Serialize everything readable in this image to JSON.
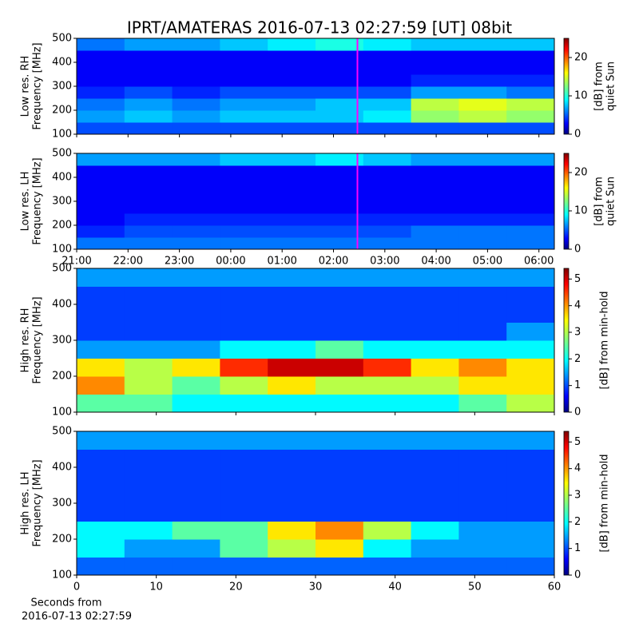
{
  "title": "IPRT/AMATERAS 2016-07-13 02:27:59 [UT]   08bit",
  "xlabel": [
    "Seconds from",
    "2016-07-13 02:27:59"
  ],
  "chart_data": [
    {
      "type": "spectrogram",
      "ylabel": [
        "Low res. RH",
        "Frequency [MHz]"
      ],
      "xlim": [
        0,
        9.3
      ],
      "ylim": [
        100,
        500
      ],
      "xticks": [
        0,
        1,
        2,
        3,
        4,
        5,
        6,
        7,
        8,
        9
      ],
      "show_xtick_labels": false,
      "yticks": [
        100,
        200,
        300,
        400,
        500
      ],
      "time_bins": [
        0,
        0.93,
        1.86,
        2.79,
        3.72,
        4.65,
        5.58,
        6.51,
        7.44,
        8.37,
        9.3
      ],
      "freq_bins": [
        100,
        150,
        200,
        250,
        300,
        350,
        400,
        450,
        500
      ],
      "values": [
        [
          5,
          5,
          5,
          5,
          5,
          5,
          5,
          5,
          5,
          5
        ],
        [
          7,
          8,
          7,
          8,
          8,
          8,
          9,
          13,
          14,
          13
        ],
        [
          6,
          7,
          6,
          7,
          7,
          8,
          8,
          14,
          15,
          14
        ],
        [
          4,
          5,
          4,
          5,
          5,
          5,
          5,
          7,
          7,
          6
        ],
        [
          3,
          3,
          3,
          3,
          3,
          3,
          3,
          4,
          4,
          4
        ],
        [
          3,
          3,
          3,
          3,
          3,
          3,
          3,
          3,
          3,
          3
        ],
        [
          3,
          3,
          3,
          3,
          3,
          3,
          3,
          3,
          3,
          3
        ],
        [
          6,
          7,
          7,
          8,
          9,
          10,
          9,
          8,
          8,
          8
        ]
      ],
      "marker_x": 5.4664,
      "marker_color": "#ff00ff",
      "clim": [
        0,
        25
      ],
      "cbticks": [
        0,
        10,
        20
      ],
      "cblabel": [
        "[dB] from",
        "quiet Sun"
      ]
    },
    {
      "type": "spectrogram",
      "ylabel": [
        "Low res. LH",
        "Frequency [MHz]"
      ],
      "xlim": [
        0,
        9.3
      ],
      "ylim": [
        100,
        500
      ],
      "xticks": [
        {
          "value": 0,
          "label": "21:00"
        },
        {
          "value": 1,
          "label": "22:00"
        },
        {
          "value": 2,
          "label": "23:00"
        },
        {
          "value": 3,
          "label": "00:00"
        },
        {
          "value": 4,
          "label": "01:00"
        },
        {
          "value": 5,
          "label": "02:00"
        },
        {
          "value": 6,
          "label": "03:00"
        },
        {
          "value": 7,
          "label": "04:00"
        },
        {
          "value": 8,
          "label": "05:00"
        },
        {
          "value": 9,
          "label": "06:00"
        }
      ],
      "yticks": [
        100,
        200,
        300,
        400,
        500
      ],
      "time_bins": [
        0,
        0.93,
        1.86,
        2.79,
        3.72,
        4.65,
        5.58,
        6.51,
        7.44,
        8.37,
        9.3
      ],
      "freq_bins": [
        100,
        150,
        200,
        250,
        300,
        350,
        400,
        450,
        500
      ],
      "values": [
        [
          6,
          6,
          6,
          6,
          6,
          6,
          6,
          6,
          6,
          6
        ],
        [
          4,
          5,
          5,
          5,
          5,
          5,
          5,
          6,
          6,
          6
        ],
        [
          3,
          4,
          4,
          4,
          4,
          4,
          4,
          4,
          4,
          4
        ],
        [
          3,
          3,
          3,
          3,
          3,
          3,
          3,
          3,
          3,
          3
        ],
        [
          3,
          3,
          3,
          3,
          3,
          3,
          3,
          3,
          3,
          3
        ],
        [
          3,
          3,
          3,
          3,
          3,
          3,
          3,
          3,
          3,
          3
        ],
        [
          3,
          3,
          3,
          3,
          3,
          3,
          3,
          3,
          3,
          3
        ],
        [
          7,
          7,
          7,
          8,
          8,
          9,
          8,
          7,
          7,
          7
        ]
      ],
      "marker_x": 5.4664,
      "marker_color": "#ff00ff",
      "clim": [
        0,
        25
      ],
      "cbticks": [
        0,
        10,
        20
      ],
      "cblabel": [
        "[dB] from",
        "quiet Sun"
      ]
    },
    {
      "type": "spectrogram",
      "ylabel": [
        "High res. RH",
        "Frequency [MHz]"
      ],
      "xlim": [
        0,
        60
      ],
      "ylim": [
        100,
        500
      ],
      "xticks": [
        0,
        10,
        20,
        30,
        40,
        50,
        60
      ],
      "show_xtick_labels": false,
      "yticks": [
        100,
        200,
        300,
        400,
        500
      ],
      "time_bins": [
        0,
        6,
        12,
        18,
        24,
        30,
        36,
        42,
        48,
        54,
        60
      ],
      "freq_bins": [
        100,
        150,
        200,
        250,
        300,
        350,
        400,
        450,
        500
      ],
      "values": [
        [
          2.5,
          2.5,
          2,
          2,
          2,
          2,
          2,
          2,
          2.5,
          3
        ],
        [
          4,
          3,
          2.5,
          3,
          3.5,
          3,
          3,
          3,
          3.5,
          3.5
        ],
        [
          3.5,
          3,
          3.5,
          4.5,
          5,
          5,
          4.5,
          3.5,
          4,
          3.5
        ],
        [
          1.5,
          1.5,
          1.5,
          2,
          2,
          2.5,
          2,
          2,
          2,
          2
        ],
        [
          1,
          1,
          1,
          1,
          1,
          1,
          1,
          1,
          1,
          1.5
        ],
        [
          1,
          1,
          1,
          1,
          1,
          1,
          1,
          1,
          1,
          1
        ],
        [
          1,
          1,
          1,
          1,
          1,
          1,
          1,
          1,
          1,
          1
        ],
        [
          1.5,
          1.5,
          1.5,
          1.5,
          1.5,
          1.5,
          1.5,
          1.5,
          1.5,
          1.5
        ]
      ],
      "clim": [
        0,
        5.4
      ],
      "cbticks": [
        0,
        1,
        2,
        3,
        4,
        5
      ],
      "cblabel": [
        "[dB] from min-hold"
      ]
    },
    {
      "type": "spectrogram",
      "ylabel": [
        "High res. LH",
        "Frequency [MHz]"
      ],
      "xlim": [
        0,
        60
      ],
      "ylim": [
        100,
        500
      ],
      "xticks": [
        0,
        10,
        20,
        30,
        40,
        50,
        60
      ],
      "yticks": [
        100,
        200,
        300,
        400,
        500
      ],
      "time_bins": [
        0,
        6,
        12,
        18,
        24,
        30,
        36,
        42,
        48,
        54,
        60
      ],
      "freq_bins": [
        100,
        150,
        200,
        250,
        300,
        350,
        400,
        450,
        500
      ],
      "values": [
        [
          1.2,
          1.2,
          1.2,
          1.2,
          1.2,
          1.2,
          1.2,
          1.2,
          1.2,
          1.2
        ],
        [
          2,
          1.5,
          1.5,
          2.5,
          3,
          3.5,
          2,
          1.5,
          1.5,
          1.5
        ],
        [
          2,
          2,
          2.5,
          2.5,
          3.5,
          4,
          3,
          2,
          1.5,
          1.5
        ],
        [
          1,
          1,
          1,
          1,
          1,
          1,
          1,
          1,
          1,
          1
        ],
        [
          1,
          1,
          1,
          1,
          1,
          1,
          1,
          1,
          1,
          1
        ],
        [
          1,
          1,
          1,
          1,
          1,
          1,
          1,
          1,
          1,
          1
        ],
        [
          1,
          1,
          1,
          1,
          1,
          1,
          1,
          1,
          1,
          1
        ],
        [
          1.5,
          1.5,
          1.5,
          1.5,
          1.5,
          1.5,
          1.5,
          1.5,
          1.5,
          1.5
        ]
      ],
      "clim": [
        0,
        5.4
      ],
      "cbticks": [
        0,
        1,
        2,
        3,
        4,
        5
      ],
      "cblabel": [
        "[dB] from min-hold"
      ]
    }
  ]
}
